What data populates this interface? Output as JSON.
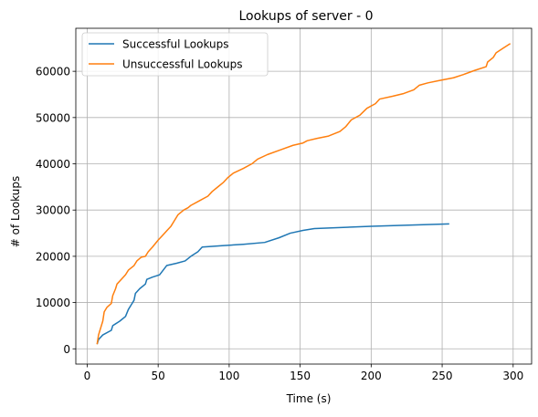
{
  "chart_data": {
    "type": "line",
    "title": "Lookups of server - 0",
    "xlabel": "Time (s)",
    "ylabel": "# of Lookups",
    "xlim": [
      -8,
      313
    ],
    "ylim": [
      -3300,
      69300
    ],
    "xticks": [
      0,
      50,
      100,
      150,
      200,
      250,
      300
    ],
    "yticks": [
      0,
      10000,
      20000,
      30000,
      40000,
      50000,
      60000
    ],
    "grid": true,
    "legend_position": "top-left",
    "series": [
      {
        "name": "Successful Lookups",
        "color": "#1f77b4",
        "points": [
          [
            7,
            1000
          ],
          [
            8,
            2000
          ],
          [
            11,
            3000
          ],
          [
            17,
            4000
          ],
          [
            18,
            5000
          ],
          [
            23,
            6000
          ],
          [
            27,
            7000
          ],
          [
            29,
            8500
          ],
          [
            31,
            9500
          ],
          [
            33,
            10500
          ],
          [
            34,
            12000
          ],
          [
            37,
            13000
          ],
          [
            41,
            14000
          ],
          [
            42,
            15000
          ],
          [
            46,
            15500
          ],
          [
            51,
            16000
          ],
          [
            56,
            18000
          ],
          [
            63,
            18500
          ],
          [
            69,
            19000
          ],
          [
            73,
            20000
          ],
          [
            78,
            21000
          ],
          [
            81,
            22000
          ],
          [
            95,
            22300
          ],
          [
            110,
            22600
          ],
          [
            125,
            23000
          ],
          [
            135,
            24000
          ],
          [
            143,
            25000
          ],
          [
            152,
            25600
          ],
          [
            160,
            26000
          ],
          [
            200,
            26500
          ],
          [
            255,
            27000
          ]
        ]
      },
      {
        "name": "Unsuccessful Lookups",
        "color": "#ff7f0e",
        "points": [
          [
            7,
            1000
          ],
          [
            8,
            3000
          ],
          [
            9,
            4000
          ],
          [
            10,
            5000
          ],
          [
            11,
            6000
          ],
          [
            12,
            8000
          ],
          [
            14,
            9000
          ],
          [
            17,
            9800
          ],
          [
            18,
            11500
          ],
          [
            20,
            13000
          ],
          [
            21,
            14000
          ],
          [
            24,
            15000
          ],
          [
            27,
            16000
          ],
          [
            29,
            17000
          ],
          [
            33,
            18000
          ],
          [
            35,
            19000
          ],
          [
            38,
            19800
          ],
          [
            41,
            20000
          ],
          [
            43,
            21000
          ],
          [
            46,
            22000
          ],
          [
            50,
            23500
          ],
          [
            53,
            24500
          ],
          [
            56,
            25500
          ],
          [
            59,
            26500
          ],
          [
            61,
            27500
          ],
          [
            64,
            29000
          ],
          [
            68,
            30000
          ],
          [
            71,
            30500
          ],
          [
            73,
            31000
          ],
          [
            79,
            32000
          ],
          [
            85,
            33000
          ],
          [
            88,
            34000
          ],
          [
            92,
            35000
          ],
          [
            96,
            36000
          ],
          [
            99,
            37000
          ],
          [
            103,
            38000
          ],
          [
            110,
            39000
          ],
          [
            116,
            40000
          ],
          [
            120,
            41000
          ],
          [
            127,
            42000
          ],
          [
            136,
            43000
          ],
          [
            145,
            44000
          ],
          [
            152,
            44500
          ],
          [
            155,
            45000
          ],
          [
            162,
            45500
          ],
          [
            170,
            46000
          ],
          [
            178,
            47000
          ],
          [
            182,
            48000
          ],
          [
            186,
            49500
          ],
          [
            192,
            50500
          ],
          [
            197,
            52000
          ],
          [
            203,
            53000
          ],
          [
            206,
            54000
          ],
          [
            215,
            54600
          ],
          [
            223,
            55200
          ],
          [
            230,
            56000
          ],
          [
            234,
            57000
          ],
          [
            240,
            57500
          ],
          [
            248,
            58000
          ],
          [
            258,
            58600
          ],
          [
            265,
            59300
          ],
          [
            273,
            60200
          ],
          [
            281,
            61000
          ],
          [
            282,
            62000
          ],
          [
            286,
            63000
          ],
          [
            288,
            64000
          ],
          [
            293,
            65000
          ],
          [
            298,
            66000
          ]
        ]
      }
    ]
  }
}
